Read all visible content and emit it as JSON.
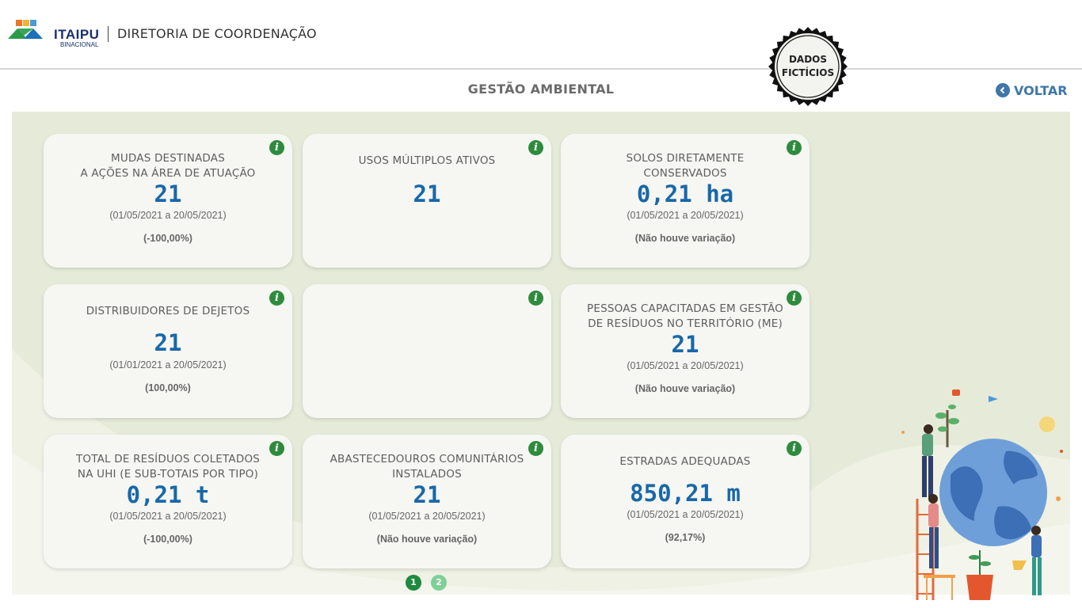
{
  "header": {
    "logo_text": "ITAIPU",
    "logo_sub": "BINACIONAL",
    "title": "DIRETORIA DE COORDENAÇÃO"
  },
  "stamp": {
    "line1": "DADOS",
    "line2": "FICTÍCIOS"
  },
  "page": {
    "title": "GESTÃO AMBIENTAL",
    "back_label": "VOLTAR"
  },
  "colors": {
    "value_blue": "#1868a8",
    "info_green": "#2e8b3d",
    "panel_bg": "#e6ebd9",
    "back_blue": "#3f77a8"
  },
  "cards": [
    {
      "title_lines": [
        "MUDAS DESTINADAS",
        "A AÇÕES NA ÁREA DE ATUAÇÃO"
      ],
      "value": "21",
      "period": "(01/05/2021 a 20/05/2021)",
      "variation": "(-100,00%)"
    },
    {
      "title_lines": [
        "USOS MÚLTIPLOS ATIVOS"
      ],
      "value": "21",
      "period": "",
      "variation": ""
    },
    {
      "title_lines": [
        "SOLOS DIRETAMENTE",
        "CONSERVADOS"
      ],
      "value": "0,21 ha",
      "period": "(01/05/2021 a 20/05/2021)",
      "variation": "(Não houve variação)"
    },
    {
      "title_lines": [
        "DISTRIBUIDORES DE DEJETOS"
      ],
      "value": "21",
      "period": "(01/01/2021 a 20/05/2021)",
      "variation": "(100,00%)"
    },
    {
      "title_lines": [],
      "value": "",
      "period": "",
      "variation": ""
    },
    {
      "title_lines": [
        "PESSOAS CAPACITADAS EM GESTÃO",
        "DE RESÍDUOS NO TERRITÓRIO (ME)"
      ],
      "value": "21",
      "period": "(01/05/2021 a 20/05/2021)",
      "variation": "(Não houve variação)"
    },
    {
      "title_lines": [
        "TOTAL DE RESÍDUOS COLETADOS",
        "NA UHI (E SUB-TOTAIS POR TIPO)"
      ],
      "value": "0,21 t",
      "period": "(01/05/2021 a 20/05/2021)",
      "variation": "(-100,00%)"
    },
    {
      "title_lines": [
        "ABASTECEDOUROS COMUNITÁRIOS",
        "INSTALADOS"
      ],
      "value": "21",
      "period": "(01/05/2021 a 20/05/2021)",
      "variation": "(Não houve variação)"
    },
    {
      "title_lines": [
        "ESTRADAS ADEQUADAS"
      ],
      "value": "850,21 m",
      "period": "(01/05/2021 a 20/05/2021)",
      "variation": "(92,17%)"
    }
  ],
  "info_icon_glyph": "i",
  "pagination": {
    "pages": [
      "1",
      "2"
    ],
    "current": "1"
  }
}
